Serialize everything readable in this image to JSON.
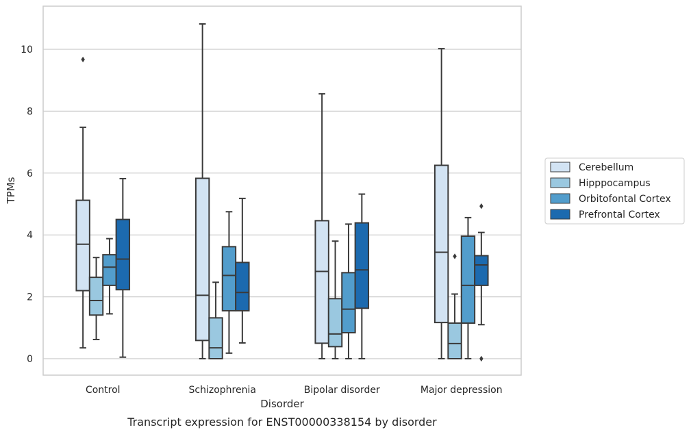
{
  "caption": "Transcript expression for ENST00000338154 by disorder",
  "chart_data": {
    "type": "box",
    "title": "",
    "xlabel": "Disorder",
    "ylabel": "TPMs",
    "ylim": [
      -0.5,
      11.4
    ],
    "yticks": [
      0,
      2,
      4,
      6,
      8,
      10
    ],
    "grid": "horizontal",
    "legend_position": "outside-right",
    "categories": [
      "Control",
      "Schizophrenia",
      "Bipolar disorder",
      "Major depression"
    ],
    "series": [
      {
        "name": "Cerebellum",
        "color": "#d2e3f3",
        "boxes": [
          {
            "whisker_low": 0.35,
            "q1": 2.2,
            "median": 3.7,
            "q3": 5.12,
            "whisker_high": 7.48,
            "outliers": [
              9.67
            ]
          },
          {
            "whisker_low": 0.0,
            "q1": 0.59,
            "median": 2.05,
            "q3": 5.83,
            "whisker_high": 10.82,
            "outliers": []
          },
          {
            "whisker_low": 0.0,
            "q1": 0.5,
            "median": 2.82,
            "q3": 4.46,
            "whisker_high": 8.56,
            "outliers": []
          },
          {
            "whisker_low": 0.0,
            "q1": 1.17,
            "median": 3.44,
            "q3": 6.25,
            "whisker_high": 10.02,
            "outliers": []
          }
        ]
      },
      {
        "name": "Hipppocampus",
        "color": "#9ac8e0",
        "boxes": [
          {
            "whisker_low": 0.62,
            "q1": 1.41,
            "median": 1.88,
            "q3": 2.63,
            "whisker_high": 3.27,
            "outliers": []
          },
          {
            "whisker_low": 0.0,
            "q1": 0.0,
            "median": 0.35,
            "q3": 1.32,
            "whisker_high": 2.47,
            "outliers": []
          },
          {
            "whisker_low": 0.0,
            "q1": 0.39,
            "median": 0.8,
            "q3": 1.94,
            "whisker_high": 3.8,
            "outliers": []
          },
          {
            "whisker_low": 0.0,
            "q1": 0.0,
            "median": 0.49,
            "q3": 1.15,
            "whisker_high": 2.09,
            "outliers": [
              3.31
            ]
          }
        ]
      },
      {
        "name": "Orbitofontal Cortex",
        "color": "#529dcc",
        "boxes": [
          {
            "whisker_low": 1.45,
            "q1": 2.37,
            "median": 2.96,
            "q3": 3.36,
            "whisker_high": 3.88,
            "outliers": []
          },
          {
            "whisker_low": 0.18,
            "q1": 1.55,
            "median": 2.69,
            "q3": 3.62,
            "whisker_high": 4.75,
            "outliers": []
          },
          {
            "whisker_low": 0.0,
            "q1": 0.84,
            "median": 1.6,
            "q3": 2.78,
            "whisker_high": 4.35,
            "outliers": []
          },
          {
            "whisker_low": 0.0,
            "q1": 1.15,
            "median": 2.37,
            "q3": 3.96,
            "whisker_high": 4.56,
            "outliers": []
          }
        ]
      },
      {
        "name": "Prefrontal Cortex",
        "color": "#1c6aaf",
        "boxes": [
          {
            "whisker_low": 0.05,
            "q1": 2.23,
            "median": 3.22,
            "q3": 4.5,
            "whisker_high": 5.82,
            "outliers": []
          },
          {
            "whisker_low": 0.51,
            "q1": 1.55,
            "median": 2.14,
            "q3": 3.11,
            "whisker_high": 5.18,
            "outliers": []
          },
          {
            "whisker_low": 0.0,
            "q1": 1.63,
            "median": 2.87,
            "q3": 4.39,
            "whisker_high": 5.32,
            "outliers": []
          },
          {
            "whisker_low": 1.1,
            "q1": 2.37,
            "median": 3.03,
            "q3": 3.33,
            "whisker_high": 4.08,
            "outliers": [
              4.93,
              0.0
            ]
          }
        ]
      }
    ]
  }
}
